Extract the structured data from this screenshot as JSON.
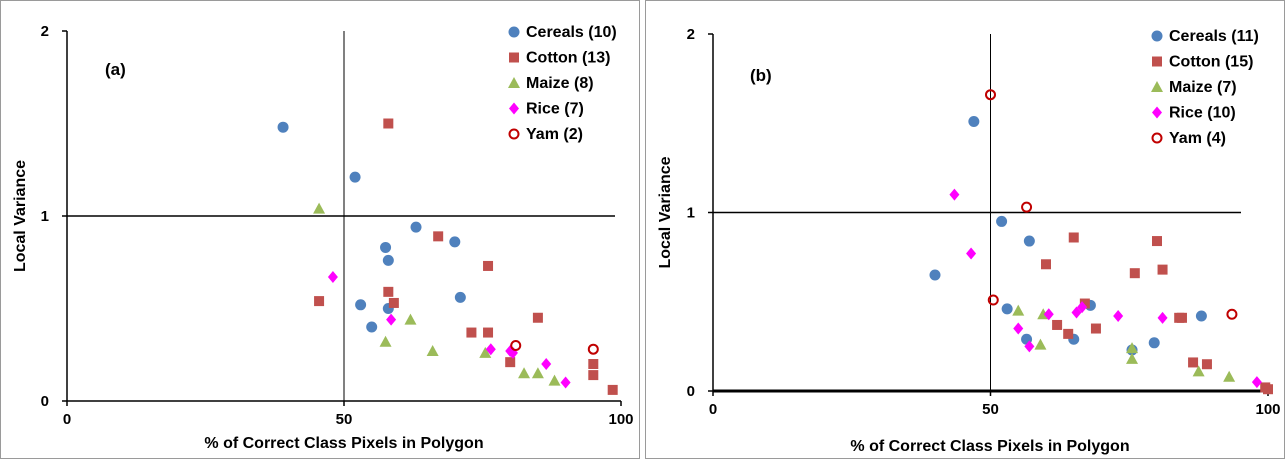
{
  "chart_data": [
    {
      "type": "scatter",
      "panel_label": "(a)",
      "xlabel": "% of Correct Class Pixels in Polygon",
      "ylabel": "Local Variance",
      "xlim": [
        0,
        100
      ],
      "ylim": [
        0,
        2
      ],
      "x_ticks": [
        "0",
        "50",
        "100"
      ],
      "y_ticks": [
        "0",
        "1",
        "2"
      ],
      "reference_lines": {
        "x": 50,
        "y": 1
      },
      "legend_position": "top-right",
      "series": [
        {
          "name": "Cereals (10)",
          "marker": "circle",
          "color": "#4f81bd",
          "points": [
            [
              39,
              1.48
            ],
            [
              52,
              1.21
            ],
            [
              57.5,
              0.83
            ],
            [
              58,
              0.76
            ],
            [
              63,
              0.94
            ],
            [
              70,
              0.86
            ],
            [
              53,
              0.52
            ],
            [
              55,
              0.4
            ],
            [
              58,
              0.5
            ],
            [
              71,
              0.56
            ]
          ]
        },
        {
          "name": "Cotton (13)",
          "marker": "square",
          "color": "#c0504d",
          "points": [
            [
              58,
              1.5
            ],
            [
              67,
              0.89
            ],
            [
              76,
              0.73
            ],
            [
              45.5,
              0.54
            ],
            [
              58,
              0.59
            ],
            [
              59,
              0.53
            ],
            [
              73,
              0.37
            ],
            [
              76,
              0.37
            ],
            [
              80,
              0.21
            ],
            [
              85,
              0.45
            ],
            [
              95,
              0.14
            ],
            [
              95,
              0.2
            ],
            [
              98.5,
              0.06
            ]
          ]
        },
        {
          "name": "Maize (8)",
          "marker": "triangle",
          "color": "#9bbb59",
          "points": [
            [
              45.5,
              1.04
            ],
            [
              62,
              0.44
            ],
            [
              57.5,
              0.32
            ],
            [
              66,
              0.27
            ],
            [
              75.5,
              0.26
            ],
            [
              82.5,
              0.15
            ],
            [
              85,
              0.15
            ],
            [
              88,
              0.11
            ]
          ]
        },
        {
          "name": "Rice (7)",
          "marker": "diamond",
          "color": "#ff00ff",
          "points": [
            [
              48,
              0.67
            ],
            [
              58.5,
              0.44
            ],
            [
              76.5,
              0.28
            ],
            [
              80,
              0.27
            ],
            [
              86.5,
              0.2
            ],
            [
              90,
              0.1
            ],
            [
              80.5,
              0.26
            ]
          ]
        },
        {
          "name": "Yam (2)",
          "marker": "open-circle",
          "color": "#c00000",
          "points": [
            [
              81,
              0.3
            ],
            [
              95,
              0.28
            ]
          ]
        }
      ]
    },
    {
      "type": "scatter",
      "panel_label": "(b)",
      "xlabel": "% of Correct Class Pixels in Polygon",
      "ylabel": "Local Variance",
      "xlim": [
        0,
        100
      ],
      "ylim": [
        0,
        2
      ],
      "x_ticks": [
        "0",
        "50",
        "100"
      ],
      "y_ticks": [
        "0",
        "1",
        "2"
      ],
      "reference_lines": {
        "x": 50,
        "y": 1
      },
      "legend_position": "top-right",
      "series": [
        {
          "name": "Cereals (11)",
          "marker": "circle",
          "color": "#4f81bd",
          "points": [
            [
              47,
              1.51
            ],
            [
              52,
              0.95
            ],
            [
              57,
              0.84
            ],
            [
              40,
              0.65
            ],
            [
              53,
              0.46
            ],
            [
              56.5,
              0.29
            ],
            [
              65,
              0.29
            ],
            [
              68,
              0.48
            ],
            [
              75.5,
              0.23
            ],
            [
              79.5,
              0.27
            ],
            [
              88,
              0.42
            ]
          ]
        },
        {
          "name": "Cotton (15)",
          "marker": "square",
          "color": "#c0504d",
          "points": [
            [
              65,
              0.86
            ],
            [
              80,
              0.84
            ],
            [
              60,
              0.71
            ],
            [
              76,
              0.66
            ],
            [
              81,
              0.68
            ],
            [
              67,
              0.49
            ],
            [
              62,
              0.37
            ],
            [
              64,
              0.32
            ],
            [
              69,
              0.35
            ],
            [
              84,
              0.41
            ],
            [
              84.5,
              0.41
            ],
            [
              86.5,
              0.16
            ],
            [
              89,
              0.15
            ],
            [
              99.5,
              0.02
            ],
            [
              100,
              0.01
            ]
          ]
        },
        {
          "name": "Maize (7)",
          "marker": "triangle",
          "color": "#9bbb59",
          "points": [
            [
              55,
              0.45
            ],
            [
              59.5,
              0.43
            ],
            [
              59,
              0.26
            ],
            [
              75.5,
              0.24
            ],
            [
              75.5,
              0.18
            ],
            [
              87.5,
              0.11
            ],
            [
              93,
              0.08
            ]
          ]
        },
        {
          "name": "Rice (10)",
          "marker": "diamond",
          "color": "#ff00ff",
          "points": [
            [
              43.5,
              1.1
            ],
            [
              46.5,
              0.77
            ],
            [
              55,
              0.35
            ],
            [
              57,
              0.25
            ],
            [
              60.5,
              0.43
            ],
            [
              65.5,
              0.44
            ],
            [
              73,
              0.42
            ],
            [
              81,
              0.41
            ],
            [
              98,
              0.05
            ],
            [
              66.5,
              0.47
            ]
          ]
        },
        {
          "name": "Yam (4)",
          "marker": "open-circle",
          "color": "#c00000",
          "points": [
            [
              50,
              1.66
            ],
            [
              56.5,
              1.03
            ],
            [
              50.5,
              0.51
            ],
            [
              93.5,
              0.43
            ]
          ]
        }
      ]
    }
  ]
}
